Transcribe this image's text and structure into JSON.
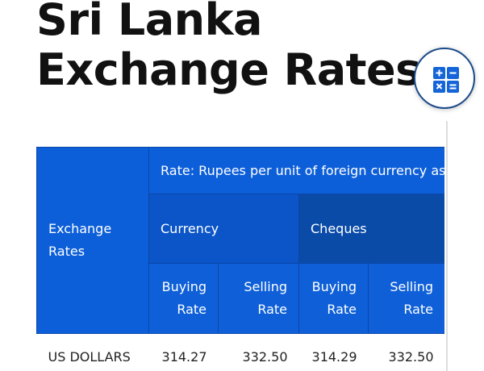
{
  "header": {
    "title": "Sri Lanka Exchange Rates"
  },
  "table": {
    "corner": "Exchange Rates",
    "span_header": "Rate: Rupees per unit of foreign currency as",
    "groups": [
      "Currency",
      "Cheques"
    ],
    "columns": [
      "Buying Rate",
      "Selling Rate",
      "Buying Rate",
      "Selling Rate"
    ],
    "rows": [
      [
        "US DOLLARS",
        "314.27",
        "332.50",
        "314.29",
        "332.50"
      ]
    ]
  }
}
